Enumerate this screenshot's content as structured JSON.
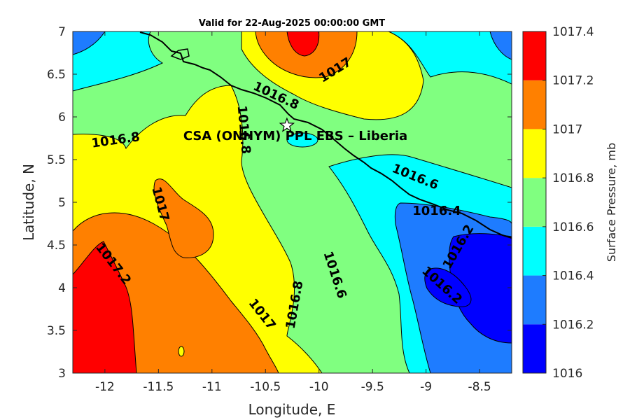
{
  "title": "Valid for 22-Aug-2025 00:00:00 GMT",
  "x_axis": {
    "label": "Longitude, E",
    "range": [
      -12.3,
      -8.2
    ],
    "ticks": [
      -12,
      -11.5,
      -11,
      -10.5,
      -10,
      -9.5,
      -9,
      -8.5
    ],
    "tick_labels": [
      "-12",
      "-11.5",
      "-11",
      "-10.5",
      "-10",
      "-9.5",
      "-9",
      "-8.5"
    ]
  },
  "y_axis": {
    "label": "Latitude, N",
    "range": [
      3,
      7
    ],
    "ticks": [
      3,
      3.5,
      4,
      4.5,
      5,
      5.5,
      6,
      6.5,
      7
    ],
    "tick_labels": [
      "3",
      "3.5",
      "4",
      "4.5",
      "5",
      "5.5",
      "6",
      "6.5",
      "7"
    ]
  },
  "colorbar": {
    "label": "Surface Pressure, mb",
    "levels": [
      1016,
      1016.2,
      1016.4,
      1016.6,
      1016.8,
      1017,
      1017.2,
      1017.4
    ],
    "tick_labels": [
      "1016",
      "1016.2",
      "1016.4",
      "1016.6",
      "1016.8",
      "1017",
      "1017.2",
      "1017.4"
    ],
    "colors": [
      "#0000ff",
      "#1e7cff",
      "#00ffff",
      "#80ff80",
      "#ffff00",
      "#ff8000",
      "#ff0000",
      "#800000"
    ]
  },
  "station": {
    "label": "CSA (ONHYM) PPL EBS  – Liberia",
    "lon": -10.3,
    "lat": 5.9
  },
  "contour_labels": [
    {
      "text": "1017",
      "lon": -9.85,
      "lat": 6.55,
      "rot": -32
    },
    {
      "text": "1016.8",
      "lon": -10.4,
      "lat": 6.25,
      "rot": 25
    },
    {
      "text": "1016.8",
      "lon": -10.7,
      "lat": 5.85,
      "rot": 85
    },
    {
      "text": "1016.8",
      "lon": -11.9,
      "lat": 5.73,
      "rot": -8
    },
    {
      "text": "1017",
      "lon": -11.48,
      "lat": 4.98,
      "rot": 75
    },
    {
      "text": "1017.2",
      "lon": -11.92,
      "lat": 4.28,
      "rot": 52
    },
    {
      "text": "1017",
      "lon": -10.53,
      "lat": 3.69,
      "rot": 52
    },
    {
      "text": "1016.8",
      "lon": -10.23,
      "lat": 3.8,
      "rot": -80
    },
    {
      "text": "1016.6",
      "lon": -9.85,
      "lat": 4.15,
      "rot": 72
    },
    {
      "text": "1016.6",
      "lon": -9.1,
      "lat": 5.3,
      "rot": 22
    },
    {
      "text": "1016.4",
      "lon": -8.9,
      "lat": 4.9,
      "rot": 0
    },
    {
      "text": "1016.2",
      "lon": -8.7,
      "lat": 4.48,
      "rot": -60
    },
    {
      "text": "1016.2",
      "lon": -8.85,
      "lat": 4.03,
      "rot": 42
    }
  ],
  "chart_data": {
    "type": "heatmap",
    "title": "Valid for 22-Aug-2025 00:00:00 GMT",
    "xlabel": "Longitude, E",
    "ylabel": "Latitude, N",
    "xlim": [
      -12.3,
      -8.2
    ],
    "ylim": [
      3,
      7
    ],
    "zlabel": "Surface Pressure, mb",
    "zlim": [
      1016,
      1017.4
    ],
    "contour_interval": 0.2,
    "contour_levels_labeled": [
      1016.2,
      1016.4,
      1016.6,
      1016.8,
      1017,
      1017.2
    ]
  }
}
